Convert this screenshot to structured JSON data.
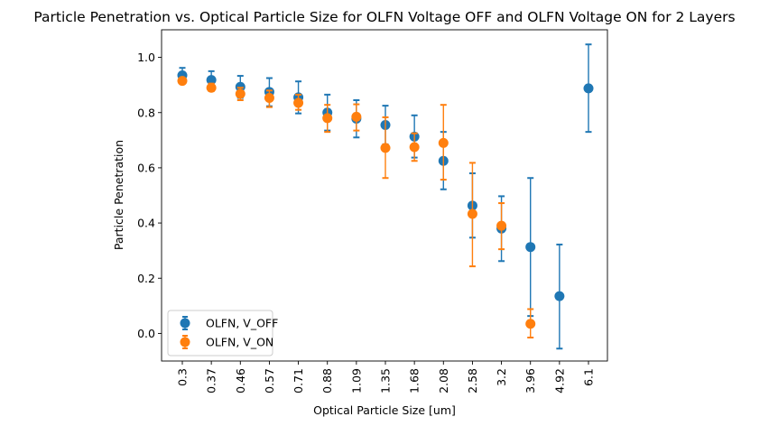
{
  "chart_data": {
    "type": "scatter",
    "title": "Particle Penetration vs. Optical Particle Size for OLFN Voltage OFF and OLFN Voltage ON for 2 Layers",
    "xlabel": "Optical Particle Size [um]",
    "ylabel": "Particle Penetration",
    "categories": [
      "0.3",
      "0.37",
      "0.46",
      "0.57",
      "0.71",
      "0.88",
      "1.09",
      "1.35",
      "1.68",
      "2.08",
      "2.58",
      "3.2",
      "3.96",
      "4.92",
      "6.1"
    ],
    "ylim": [
      -0.1,
      1.1
    ],
    "yticks": [
      "0.0",
      "0.2",
      "0.4",
      "0.6",
      "0.8",
      "1.0"
    ],
    "grid": false,
    "legend_position": "lower-left",
    "error_bars": true,
    "series": [
      {
        "name": "OLFN, V_OFF",
        "color": "#1f77b4",
        "values": [
          0.935,
          0.918,
          0.893,
          0.875,
          0.855,
          0.8,
          0.778,
          0.755,
          0.713,
          0.625,
          0.463,
          0.38,
          0.313,
          0.135,
          0.888
        ],
        "err_low": [
          0.905,
          0.885,
          0.853,
          0.823,
          0.797,
          0.735,
          0.71,
          0.685,
          0.637,
          0.522,
          0.347,
          0.262,
          0.063,
          -0.055,
          0.73
        ],
        "err_high": [
          0.962,
          0.95,
          0.933,
          0.925,
          0.913,
          0.865,
          0.845,
          0.825,
          0.79,
          0.73,
          0.58,
          0.497,
          0.563,
          0.322,
          1.047
        ]
      },
      {
        "name": "OLFN, V_ON",
        "color": "#ff7f0e",
        "values": [
          0.915,
          0.89,
          0.868,
          0.853,
          0.835,
          0.78,
          0.785,
          0.672,
          0.675,
          0.69,
          0.433,
          0.39,
          0.035,
          null,
          null
        ],
        "err_low": [
          0.905,
          0.878,
          0.845,
          0.82,
          0.81,
          0.73,
          0.735,
          0.563,
          0.625,
          0.557,
          0.243,
          0.305,
          -0.015,
          null,
          null
        ],
        "err_high": [
          0.925,
          0.905,
          0.89,
          0.88,
          0.865,
          0.828,
          0.83,
          0.783,
          0.725,
          0.828,
          0.618,
          0.472,
          0.088,
          null,
          null
        ]
      }
    ]
  }
}
